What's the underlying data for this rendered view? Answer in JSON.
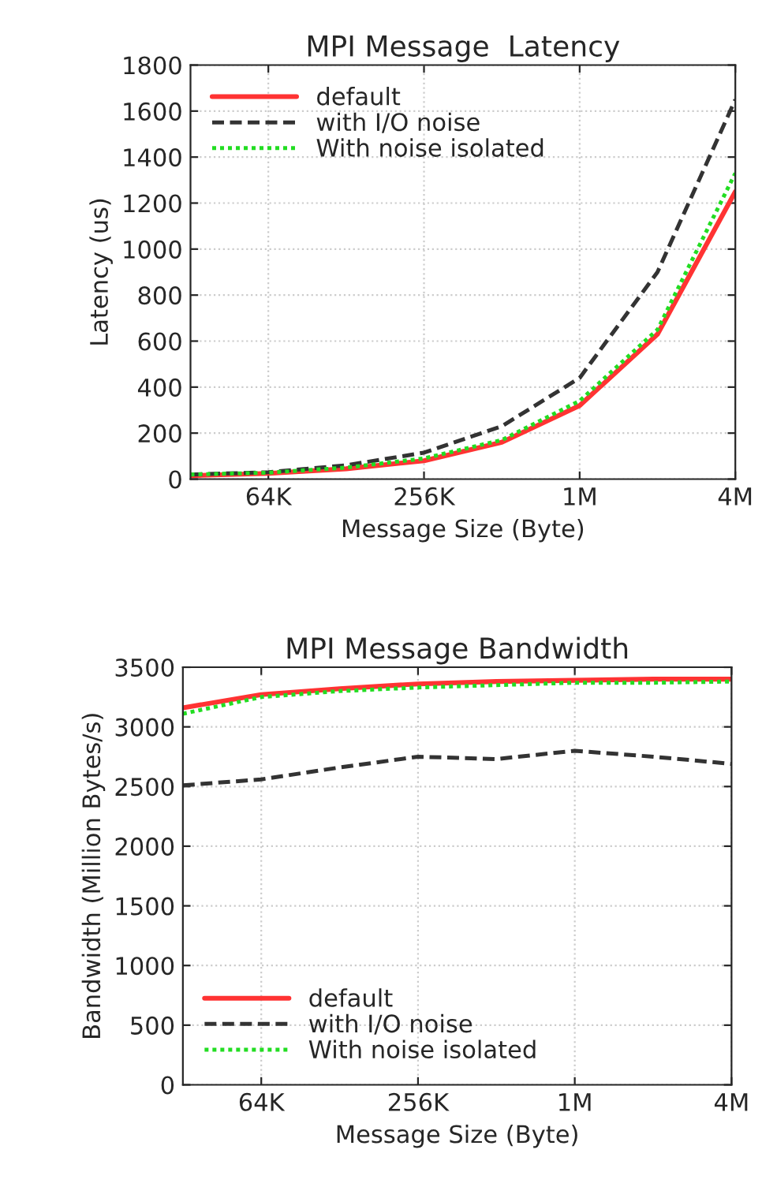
{
  "chart_data": [
    {
      "type": "line",
      "title": "MPI Message  Latency",
      "xlabel": "Message Size (Byte)",
      "ylabel": "Latency (us)",
      "categories": [
        null,
        "64K",
        null,
        "256K",
        null,
        "1M",
        null,
        "4M"
      ],
      "ylim": [
        0,
        1800
      ],
      "yticks": [
        0,
        200,
        400,
        600,
        800,
        1000,
        1200,
        1400,
        1600,
        1800
      ],
      "grid": true,
      "legend": "top left",
      "series": [
        {
          "name": "default",
          "color": "#ff3333",
          "line_style": "solid",
          "values": [
            15,
            25,
            45,
            80,
            160,
            320,
            630,
            1250
          ]
        },
        {
          "name": "with I/O noise",
          "color": "#333333",
          "line_style": "dashed",
          "values": [
            20,
            30,
            60,
            115,
            230,
            440,
            900,
            1650
          ]
        },
        {
          "name": "With noise isolated",
          "color": "#22dd22",
          "line_style": "dotted",
          "values": [
            20,
            28,
            50,
            90,
            170,
            340,
            650,
            1330
          ]
        }
      ]
    },
    {
      "type": "line",
      "title": "MPI Message Bandwidth",
      "xlabel": "Message Size (Byte)",
      "ylabel": "Bandwidth (Million Bytes/s)",
      "categories": [
        null,
        "64K",
        null,
        "256K",
        null,
        "1M",
        null,
        "4M"
      ],
      "ylim": [
        0,
        3500
      ],
      "yticks": [
        0,
        500,
        1000,
        1500,
        2000,
        2500,
        3000,
        3500
      ],
      "grid": true,
      "legend": "bottom left",
      "series": [
        {
          "name": "default",
          "color": "#ff3333",
          "line_style": "solid",
          "values": [
            3160,
            3270,
            3320,
            3360,
            3380,
            3390,
            3400,
            3400
          ]
        },
        {
          "name": "with I/O noise",
          "color": "#333333",
          "line_style": "dashed",
          "values": [
            2510,
            2560,
            2660,
            2750,
            2730,
            2800,
            2750,
            2690
          ]
        },
        {
          "name": "With noise isolated",
          "color": "#22dd22",
          "line_style": "dotted",
          "values": [
            3110,
            3250,
            3300,
            3330,
            3350,
            3370,
            3370,
            3380
          ]
        }
      ]
    }
  ]
}
